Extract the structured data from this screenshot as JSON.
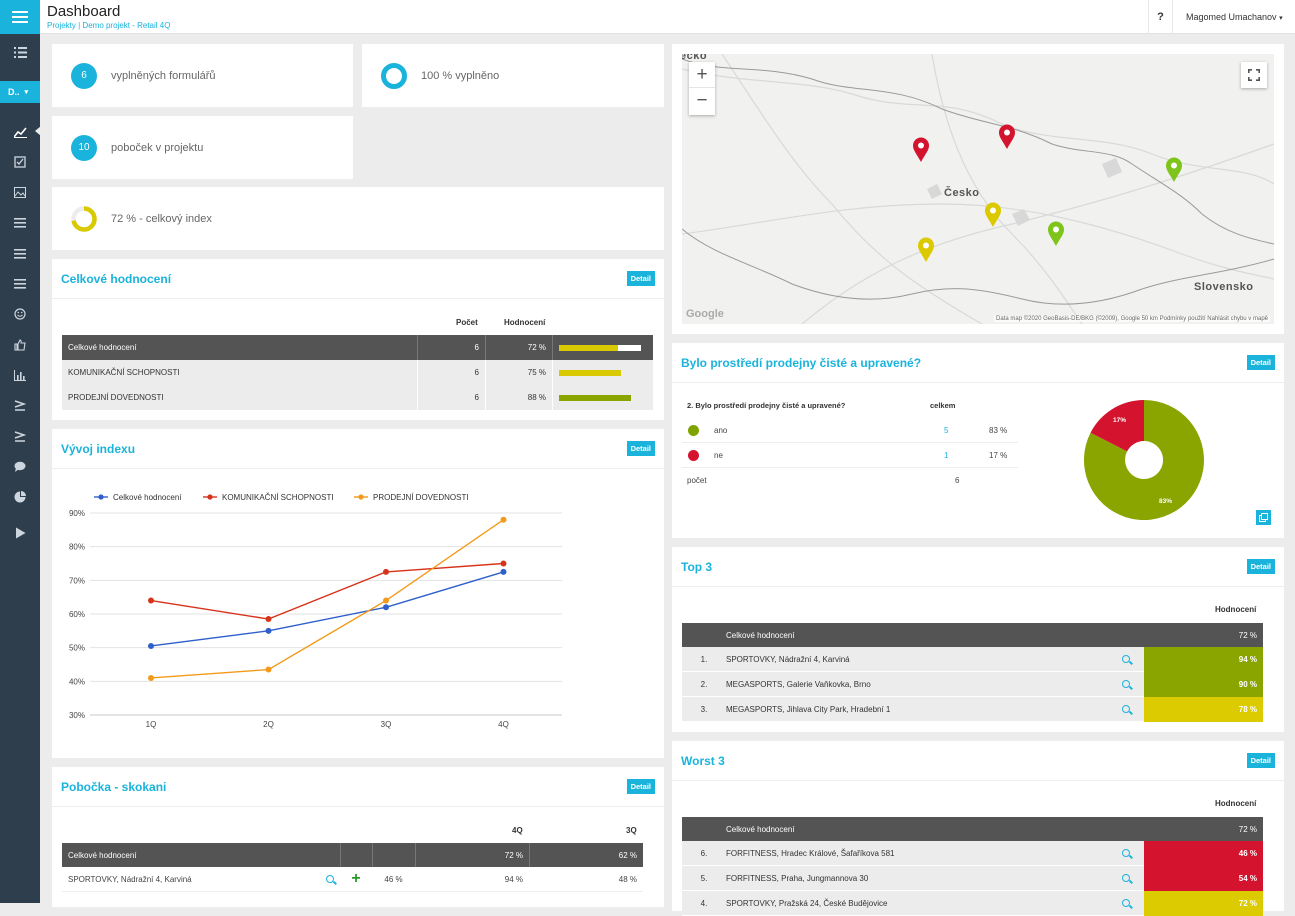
{
  "app": {
    "title": "Dashboard",
    "breadcrumb": "Projekty  |  Demo projekt - Retail 4Q",
    "help": "?",
    "user": "Magomed Umachanov"
  },
  "sidebar": {
    "project": "D..",
    "icons": [
      "list-icon",
      "chart-line-icon",
      "checkbox-icon",
      "image-icon",
      "menu-icon",
      "menu-icon",
      "menu-icon",
      "smile-icon",
      "thumb-up-icon",
      "bar-chart-icon",
      "chevron-icon",
      "chevron-icon",
      "chat-icon",
      "pie-icon",
      "play-icon"
    ]
  },
  "kpis": {
    "forms_count": "6",
    "forms_label": "vyplněných formulářů",
    "filled_label": "100 % vyplněno",
    "branches_count": "10",
    "branches_label": "poboček v projektu",
    "index_label": "72 % - celkový index",
    "index_value": 0.72
  },
  "overall": {
    "title": "Celkové hodnocení",
    "detail": "Detail",
    "col_count": "Počet",
    "col_rating": "Hodnocení",
    "rows": [
      {
        "name": "Celkové hodnocení",
        "count": "6",
        "pct": "72 %",
        "value": 0.72,
        "color": "#d9c900"
      },
      {
        "name": "KOMUNIKAČNÍ SCHOPNOSTI",
        "count": "6",
        "pct": "75 %",
        "value": 0.75,
        "color": "#d9c900"
      },
      {
        "name": "PRODEJNÍ DOVEDNOSTI",
        "count": "6",
        "pct": "88 %",
        "value": 0.88,
        "color": "#8aa400"
      }
    ]
  },
  "trend": {
    "title": "Vývoj indexu",
    "detail": "Detail"
  },
  "chart_data": {
    "type": "line",
    "categories": [
      "1Q",
      "2Q",
      "3Q",
      "4Q"
    ],
    "ylim": [
      30,
      90
    ],
    "yticks": [
      "30%",
      "40%",
      "50%",
      "60%",
      "70%",
      "80%",
      "90%"
    ],
    "series": [
      {
        "name": "Celkové hodnocení",
        "color": "#2e5fcc",
        "values": [
          50.5,
          55,
          62,
          72.5
        ]
      },
      {
        "name": "KOMUNIKAČNÍ SCHOPNOSTI",
        "color": "#d7331b",
        "values": [
          64,
          58.5,
          72.5,
          75
        ]
      },
      {
        "name": "PRODEJNÍ DOVEDNOSTI",
        "color": "#f39a1a",
        "values": [
          41,
          43.5,
          64,
          88
        ]
      }
    ]
  },
  "jumpers": {
    "title": "Pobočka - skokani",
    "detail": "Detail",
    "col_4q": "4Q",
    "col_3q": "3Q",
    "header_name": "Celkové hodnocení",
    "header_4q": "72 %",
    "header_3q": "62 %",
    "rows": [
      {
        "name": "SPORTOVKY, Nádražní 4, Karviná",
        "diff": "46 %",
        "v4": "94 %",
        "v3": "48 %"
      }
    ]
  },
  "map": {
    "zoom_in": "+",
    "zoom_out": "−",
    "label_cesko": "Česko",
    "label_slovensko": "Slovensko",
    "label_top": "ecko",
    "google": "Google",
    "footer": "Data map ©2020 GeoBasis-DE/BKG (©2009), Google    50 km          Podmínky použití    Nahlásit chybu v mapě"
  },
  "clean": {
    "title": "Bylo prostředí prodejny čisté a upravené?",
    "detail": "Detail",
    "question": "2. Bylo prostředí prodejny čisté a upravené?",
    "col_total": "celkem",
    "rows": [
      {
        "label": "ano",
        "count": "5",
        "pct": "83 %",
        "color": "#7fa300"
      },
      {
        "label": "ne",
        "count": "1",
        "pct": "17 %",
        "color": "#d4142e"
      }
    ],
    "total_label": "počet",
    "total": "6",
    "pie_yes": "83%",
    "pie_no": "17%"
  },
  "top3": {
    "title": "Top 3",
    "detail": "Detail",
    "col": "Hodnocení",
    "header": "Celkové hodnocení",
    "header_pct": "72 %",
    "rows": [
      {
        "rank": "1.",
        "name": "SPORTOVKY, Nádražní 4, Karviná",
        "pct": "94 %",
        "color": "#8aa400"
      },
      {
        "rank": "2.",
        "name": "MEGASPORTS, Galerie Vaňkovka, Brno",
        "pct": "90 %",
        "color": "#8aa400"
      },
      {
        "rank": "3.",
        "name": "MEGASPORTS, Jihlava City Park, Hradební 1",
        "pct": "78 %",
        "color": "#dccb00"
      }
    ]
  },
  "worst3": {
    "title": "Worst 3",
    "detail": "Detail",
    "col": "Hodnocení",
    "header": "Celkové hodnocení",
    "header_pct": "72 %",
    "rows": [
      {
        "rank": "6.",
        "name": "FORFITNESS, Hradec Králové, Šafaříkova 581",
        "pct": "46 %",
        "color": "#d4142e"
      },
      {
        "rank": "5.",
        "name": "FORFITNESS, Praha, Jungmannova 30",
        "pct": "54 %",
        "color": "#d4142e"
      },
      {
        "rank": "4.",
        "name": "SPORTOVKY, Pražská 24, České Budějovice",
        "pct": "72 %",
        "color": "#dccb00"
      }
    ]
  }
}
